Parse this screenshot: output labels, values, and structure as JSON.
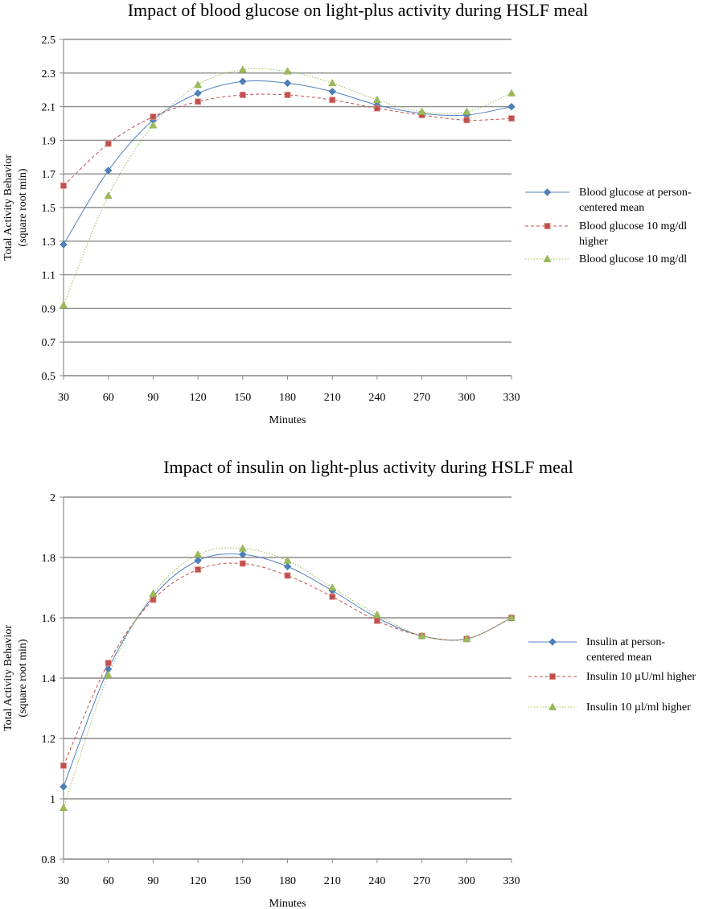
{
  "chart_data": [
    {
      "type": "line",
      "title": "Impact of blood glucose on light-plus activity during HSLF meal",
      "xlabel": "Minutes",
      "ylabel": [
        "Total Activity Behavior",
        "(square root  min)"
      ],
      "x": [
        30,
        60,
        90,
        120,
        150,
        180,
        210,
        240,
        270,
        300,
        330
      ],
      "x_ticks": [
        "30",
        "60",
        "90",
        "120",
        "150",
        "180",
        "210",
        "240",
        "270",
        "300",
        "330"
      ],
      "ylim": [
        0.5,
        2.5
      ],
      "y_ticks": [
        "0.5",
        "0.7",
        "0.9",
        "1.1",
        "1.3",
        "1.5",
        "1.7",
        "1.9",
        "2.1",
        "2.3",
        "2.5"
      ],
      "grid": "horizontal",
      "legend": "right",
      "series": [
        {
          "name": [
            "Blood glucose at person-",
            "centered mean"
          ],
          "color": "#4f81bd",
          "marker": "diamond",
          "dash": "solid",
          "values": [
            1.28,
            1.72,
            2.02,
            2.18,
            2.25,
            2.24,
            2.19,
            2.11,
            2.06,
            2.05,
            2.1
          ]
        },
        {
          "name": [
            "Blood glucose 10 mg/dl",
            "higher"
          ],
          "color": "#c0504d",
          "marker": "square",
          "dash": "dashed",
          "values": [
            1.63,
            1.88,
            2.04,
            2.13,
            2.17,
            2.17,
            2.14,
            2.09,
            2.05,
            2.02,
            2.03
          ]
        },
        {
          "name": [
            "Blood glucose 10 mg/dl"
          ],
          "color": "#9bbb59",
          "marker": "triangle",
          "dash": "dotted",
          "values": [
            0.92,
            1.57,
            1.99,
            2.23,
            2.32,
            2.31,
            2.24,
            2.14,
            2.07,
            2.07,
            2.18
          ]
        }
      ]
    },
    {
      "type": "line",
      "title": "Impact of insulin on light-plus activity during HSLF meal",
      "xlabel": "Minutes",
      "ylabel": [
        "Total Activity Behavior",
        "(square root min)"
      ],
      "x": [
        30,
        60,
        90,
        120,
        150,
        180,
        210,
        240,
        270,
        300,
        330
      ],
      "x_ticks": [
        "30",
        "60",
        "90",
        "120",
        "150",
        "180",
        "210",
        "240",
        "270",
        "300",
        "330"
      ],
      "ylim": [
        0.8,
        2.0
      ],
      "y_ticks": [
        "0.8",
        "1",
        "1.2",
        "1.4",
        "1.6",
        "1.8",
        "2"
      ],
      "grid": "horizontal",
      "legend": "right",
      "series": [
        {
          "name": [
            "Insulin at person-",
            "centered mean"
          ],
          "color": "#4f81bd",
          "marker": "diamond",
          "dash": "solid",
          "values": [
            1.04,
            1.43,
            1.67,
            1.79,
            1.81,
            1.77,
            1.69,
            1.6,
            1.54,
            1.53,
            1.6
          ]
        },
        {
          "name": [
            "Insulin 10 µU/ml higher"
          ],
          "color": "#c0504d",
          "marker": "square",
          "dash": "dashed",
          "values": [
            1.11,
            1.45,
            1.66,
            1.76,
            1.78,
            1.74,
            1.67,
            1.59,
            1.54,
            1.53,
            1.6
          ]
        },
        {
          "name": [
            "Insulin 10 µl/ml higher"
          ],
          "color": "#9bbb59",
          "marker": "triangle",
          "dash": "dotted",
          "values": [
            0.97,
            1.41,
            1.68,
            1.81,
            1.83,
            1.79,
            1.7,
            1.61,
            1.54,
            1.53,
            1.6
          ]
        }
      ]
    }
  ]
}
